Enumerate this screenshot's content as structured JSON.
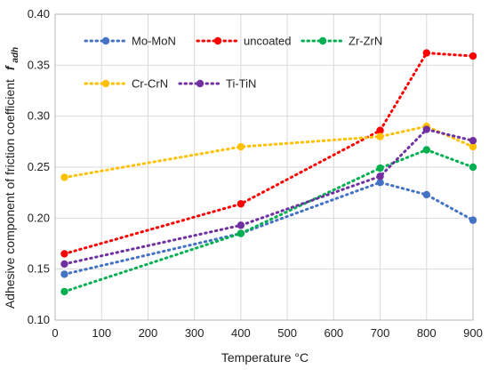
{
  "chart_data": {
    "type": "line",
    "title": "",
    "xlabel": "Temperature °C",
    "ylabel": "Adhesive component of friction coefficient",
    "ylabel_symbol": "f",
    "ylabel_symbol_sub": "adh",
    "xlim": [
      0,
      900
    ],
    "ylim": [
      0.1,
      0.4
    ],
    "x_ticks": [
      "0",
      "100",
      "200",
      "300",
      "400",
      "500",
      "600",
      "700",
      "800",
      "900"
    ],
    "y_ticks": [
      "0.10",
      "0.15",
      "0.20",
      "0.25",
      "0.30",
      "0.35",
      "0.40"
    ],
    "grid": true,
    "legend_placement": "top-left",
    "series": [
      {
        "name": "Mo-MoN",
        "color": "#4472c4",
        "x": [
          20,
          400,
          700,
          800,
          900
        ],
        "y": [
          0.145,
          0.185,
          0.235,
          0.223,
          0.198
        ]
      },
      {
        "name": "uncoated",
        "color": "#ff0000",
        "x": [
          20,
          400,
          700,
          800,
          900
        ],
        "y": [
          0.165,
          0.214,
          0.286,
          0.362,
          0.359
        ]
      },
      {
        "name": "Zr-ZrN",
        "color": "#00b050",
        "x": [
          20,
          400,
          700,
          800,
          900
        ],
        "y": [
          0.128,
          0.185,
          0.249,
          0.267,
          0.25
        ]
      },
      {
        "name": "Cr-CrN",
        "color": "#ffc000",
        "x": [
          20,
          400,
          700,
          800,
          900
        ],
        "y": [
          0.24,
          0.27,
          0.28,
          0.29,
          0.27
        ]
      },
      {
        "name": "Ti-TiN",
        "color": "#7030a0",
        "x": [
          20,
          400,
          700,
          800,
          900
        ],
        "y": [
          0.155,
          0.193,
          0.241,
          0.287,
          0.276
        ]
      }
    ]
  }
}
